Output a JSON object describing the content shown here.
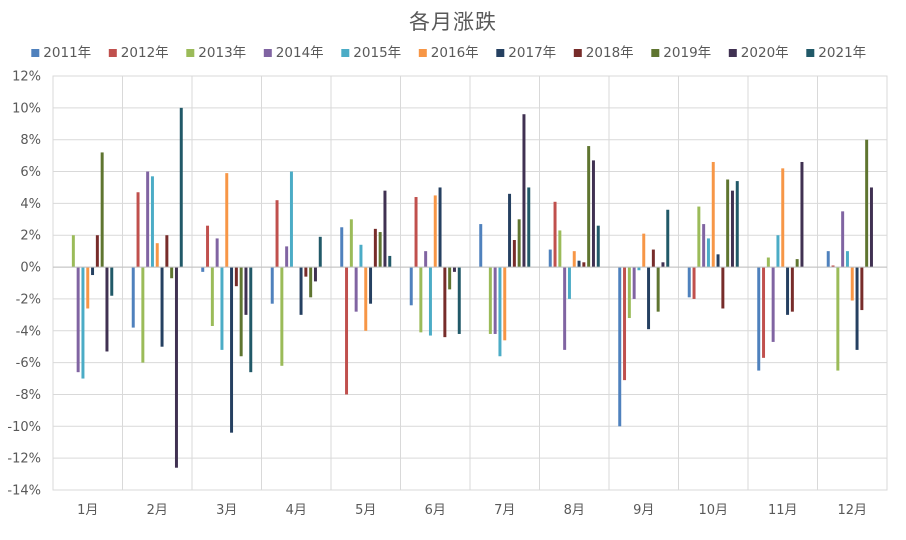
{
  "chart_data": {
    "type": "bar",
    "title": "各月涨跌",
    "xlabel": "",
    "ylabel": "",
    "ylim": [
      -14,
      12
    ],
    "ytick_step": 2,
    "ytick_format": "percent",
    "grid": true,
    "legend_position": "top",
    "categories": [
      "1月",
      "2月",
      "3月",
      "4月",
      "5月",
      "6月",
      "7月",
      "8月",
      "9月",
      "10月",
      "11月",
      "12月"
    ],
    "series": [
      {
        "name": "2011年",
        "color": "#4F81BD",
        "values": [
          0.0,
          -3.8,
          -0.3,
          -2.3,
          2.5,
          -2.4,
          2.7,
          1.1,
          -10.0,
          -1.9,
          -6.5,
          1.0
        ]
      },
      {
        "name": "2012年",
        "color": "#C0504D",
        "values": [
          0.0,
          4.7,
          2.6,
          4.2,
          -8.0,
          4.4,
          0.0,
          4.1,
          -7.1,
          -2.0,
          -5.7,
          0.1
        ]
      },
      {
        "name": "2013年",
        "color": "#9BBB59",
        "values": [
          2.0,
          -6.0,
          -3.7,
          -6.2,
          3.0,
          -4.1,
          -4.2,
          2.3,
          -3.2,
          3.8,
          0.6,
          -6.5
        ]
      },
      {
        "name": "2014年",
        "color": "#8064A2",
        "values": [
          -6.6,
          6.0,
          1.8,
          1.3,
          -2.8,
          1.0,
          -4.2,
          -5.2,
          -2.0,
          2.7,
          -4.7,
          3.5
        ]
      },
      {
        "name": "2015年",
        "color": "#4BACC6",
        "values": [
          -7.0,
          5.7,
          -5.2,
          6.0,
          1.4,
          -4.3,
          -5.6,
          -2.0,
          -0.2,
          1.8,
          2.0,
          1.0
        ]
      },
      {
        "name": "2016年",
        "color": "#F79646",
        "values": [
          -2.6,
          1.5,
          5.9,
          0.0,
          -4.0,
          4.5,
          -4.6,
          1.0,
          2.1,
          6.6,
          6.2,
          -2.1
        ]
      },
      {
        "name": "2017年",
        "color": "#254061",
        "values": [
          -0.5,
          -5.0,
          -10.4,
          -3.0,
          -2.3,
          5.0,
          4.6,
          0.4,
          -3.9,
          0.8,
          -3.0,
          -5.2
        ]
      },
      {
        "name": "2018年",
        "color": "#772C2A",
        "values": [
          2.0,
          2.0,
          -1.2,
          -0.6,
          2.4,
          -4.4,
          1.7,
          0.3,
          1.1,
          -2.6,
          -2.8,
          -2.7
        ]
      },
      {
        "name": "2019年",
        "color": "#5F7530",
        "values": [
          7.2,
          -0.7,
          -5.6,
          -1.9,
          2.2,
          -1.4,
          3.0,
          7.6,
          -2.8,
          5.5,
          0.5,
          8.0
        ]
      },
      {
        "name": "2020年",
        "color": "#403152",
        "values": [
          -5.3,
          -12.6,
          -3.0,
          -0.9,
          4.8,
          -0.3,
          9.6,
          6.7,
          0.3,
          4.8,
          6.6,
          5.0
        ]
      },
      {
        "name": "2021年",
        "color": "#215968",
        "values": [
          -1.8,
          10.0,
          -6.6,
          1.9,
          0.7,
          -4.2,
          5.0,
          2.6,
          3.6,
          5.4,
          0.0,
          0.0
        ]
      }
    ]
  }
}
